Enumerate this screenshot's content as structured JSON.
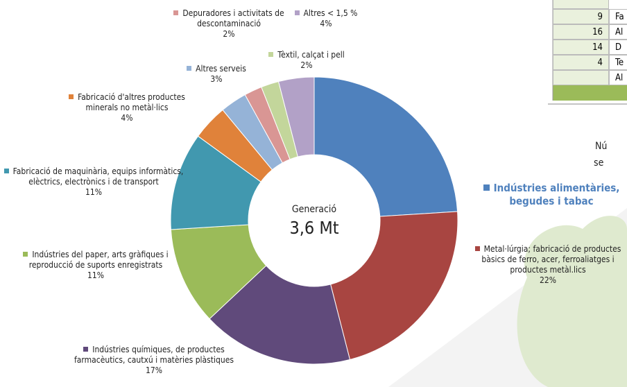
{
  "chart_data": {
    "type": "pie",
    "donut": true,
    "center_label": {
      "title": "Generació",
      "value": "3,6 Mt"
    },
    "categories": [
      "Indústries alimentàries, begudes i tabac",
      "Metal·lúrgia; fabricació de productes bàsics de ferro, acer, ferroaliatges i productes metàl.lics",
      "Indústries químiques, de productes farmacèutics, cautxú i matèries plàstiques",
      "Indústries del paper, arts gràfiques i reproducció de suports enregistrats",
      "Fabricació de maquinària, equips informàtics, elèctrics, electrònics i de transport",
      "Fabricació d'altres productes minerals no metàl·lics",
      "Altres serveis",
      "Depuradores i activitats de descontaminació",
      "Tèxtil, calçat i pell",
      "Altres < 1,5 %"
    ],
    "values": [
      24,
      22,
      17,
      11,
      11,
      4,
      3,
      2,
      2,
      4
    ],
    "value_labels": [
      null,
      "22%",
      "17%",
      "11%",
      "11%",
      "4%",
      "3%",
      "2%",
      "2%",
      "4%"
    ],
    "colors": [
      "#4f81bd",
      "#a84541",
      "#604a7b",
      "#9bbb59",
      "#4198af",
      "#e0823a",
      "#95b3d7",
      "#d99694",
      "#c3d69b",
      "#b2a1c7"
    ]
  },
  "side_table": {
    "rows": [
      [
        9,
        "Fa"
      ],
      [
        16,
        "Al"
      ],
      [
        14,
        "D"
      ],
      [
        4,
        "Te"
      ],
      [
        null,
        "Al"
      ]
    ]
  },
  "side_text": [
    "Nú",
    "se"
  ]
}
